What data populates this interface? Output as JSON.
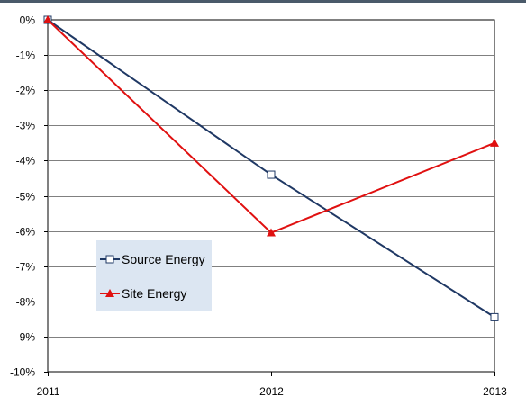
{
  "chart_data": {
    "type": "line",
    "title": "",
    "xlabel": "",
    "ylabel": "",
    "categories": [
      "2011",
      "2012",
      "2013"
    ],
    "ylim": [
      -10,
      0
    ],
    "yticks": [
      "0%",
      "-1%",
      "-2%",
      "-3%",
      "-4%",
      "-5%",
      "-6%",
      "-7%",
      "-8%",
      "-9%",
      "-10%"
    ],
    "grid": true,
    "legend_position": "left-middle",
    "series": [
      {
        "name": "Source Energy",
        "values": [
          0,
          -4.4,
          -8.45
        ],
        "color": "#1f3864",
        "marker": "open-square"
      },
      {
        "name": "Site Energy",
        "values": [
          0,
          -6.05,
          -3.5
        ],
        "color": "#e01010",
        "marker": "filled-triangle"
      }
    ]
  }
}
